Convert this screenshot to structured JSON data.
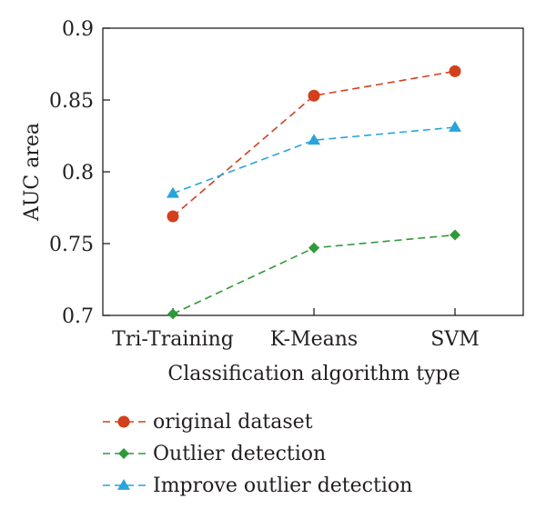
{
  "chart_data": {
    "type": "line",
    "xlabel": "Classification algorithm type",
    "ylabel": "AUC area",
    "categories": [
      "Tri-Training",
      "K-Means",
      "SVM"
    ],
    "ylim": [
      0.7,
      0.9
    ],
    "yticks": [
      0.7,
      0.75,
      0.8,
      0.85,
      0.9
    ],
    "ytick_labels": [
      "0.7",
      "0.75",
      "0.8",
      "0.85",
      "0.9"
    ],
    "grid": false,
    "legend_position": "bottom",
    "series": [
      {
        "name": "original dataset",
        "marker": "circle",
        "color": "#d2401c",
        "values": [
          0.769,
          0.853,
          0.87
        ]
      },
      {
        "name": "Outlier detection",
        "marker": "diamond",
        "color": "#2e9a3a",
        "values": [
          0.701,
          0.747,
          0.756
        ]
      },
      {
        "name": "Improve outlier detection",
        "marker": "triangle",
        "color": "#28a4dc",
        "values": [
          0.785,
          0.822,
          0.831
        ]
      }
    ]
  }
}
